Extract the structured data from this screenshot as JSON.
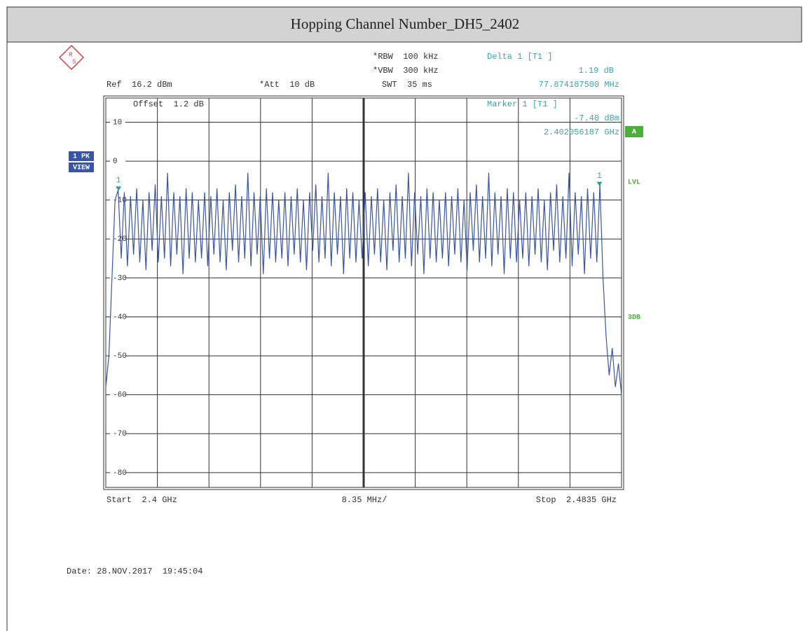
{
  "chart_data": {
    "type": "line",
    "title": "Hopping Channel Number_DH5_2402",
    "annotations": {
      "rbw": "*RBW  100 kHz",
      "vbw": "*VBW  300 kHz",
      "swt": "SWT  35 ms",
      "delta": "Delta 1 [T1 ]",
      "delta_level": "1.19 dB",
      "delta_freq": "77.874187500 MHz",
      "ref": "Ref  16.2 dBm",
      "att": "*Att  10 dB",
      "offset": "Offset  1.2 dB",
      "marker": "Marker 1 [T1 ]",
      "marker_level": "-7.40 dBm",
      "marker_freq": "2.402056187 GHz",
      "trace_box": "A",
      "lvl": "LVL",
      "db3": "3DB",
      "detector": "1 PK",
      "view": "VIEW",
      "start": "Start  2.4 GHz",
      "span": "8.35 MHz/",
      "stop": "Stop  2.4835 GHz",
      "date": "Date: 28.NOV.2017  19:45:04"
    },
    "xlim": [
      2.4,
      2.4835
    ],
    "ylim": [
      -83.8,
      16.2
    ],
    "yticks": [
      10,
      0,
      -10,
      -20,
      -30,
      -40,
      -50,
      -60,
      -70,
      -80
    ],
    "grid": true,
    "markers": [
      {
        "label": "1",
        "x": 2.402056187,
        "y": -7.4
      },
      {
        "label": "1",
        "x": 2.47993,
        "y": -6.21
      }
    ],
    "series": [
      {
        "name": "Trace 1",
        "color": "#3a55a4",
        "x": [
          2.4,
          2.4005,
          2.401,
          2.4015,
          2.402,
          2.4025,
          2.403,
          2.4035,
          2.404,
          2.4045,
          2.405,
          2.4055,
          2.406,
          2.4065,
          2.407,
          2.4075,
          2.408,
          2.4085,
          2.409,
          2.4095,
          2.41,
          2.4105,
          2.411,
          2.4115,
          2.412,
          2.4125,
          2.413,
          2.4135,
          2.414,
          2.4145,
          2.415,
          2.4155,
          2.416,
          2.4165,
          2.417,
          2.4175,
          2.418,
          2.4185,
          2.419,
          2.4195,
          2.42,
          2.4205,
          2.421,
          2.4215,
          2.422,
          2.4225,
          2.423,
          2.4235,
          2.424,
          2.4245,
          2.425,
          2.4255,
          2.426,
          2.4265,
          2.427,
          2.4275,
          2.428,
          2.4285,
          2.429,
          2.4295,
          2.43,
          2.4305,
          2.431,
          2.4315,
          2.432,
          2.4325,
          2.433,
          2.4335,
          2.434,
          2.4345,
          2.435,
          2.4355,
          2.436,
          2.4365,
          2.437,
          2.4375,
          2.438,
          2.4385,
          2.439,
          2.4395,
          2.44,
          2.4405,
          2.441,
          2.4415,
          2.442,
          2.4425,
          2.443,
          2.4435,
          2.444,
          2.4445,
          2.445,
          2.4455,
          2.446,
          2.4465,
          2.447,
          2.4475,
          2.448,
          2.4485,
          2.449,
          2.4495,
          2.45,
          2.4505,
          2.451,
          2.4515,
          2.452,
          2.4525,
          2.453,
          2.4535,
          2.454,
          2.4545,
          2.455,
          2.4555,
          2.456,
          2.4565,
          2.457,
          2.4575,
          2.458,
          2.4585,
          2.459,
          2.4595,
          2.46,
          2.4605,
          2.461,
          2.4615,
          2.462,
          2.4625,
          2.463,
          2.4635,
          2.464,
          2.4645,
          2.465,
          2.4655,
          2.466,
          2.4665,
          2.467,
          2.4675,
          2.468,
          2.4685,
          2.469,
          2.4695,
          2.47,
          2.4705,
          2.471,
          2.4715,
          2.472,
          2.4725,
          2.473,
          2.4735,
          2.474,
          2.4745,
          2.475,
          2.4755,
          2.476,
          2.4765,
          2.477,
          2.4775,
          2.478,
          2.4785,
          2.479,
          2.4795,
          2.48,
          2.4805,
          2.481,
          2.4815,
          2.482,
          2.4825,
          2.483,
          2.4835
        ],
        "values": [
          -58,
          -50,
          -30,
          -10,
          -7.4,
          -25,
          -8,
          -27,
          -9,
          -24,
          -7,
          -26,
          -10,
          -28,
          -8,
          -23,
          -6,
          -26,
          -9,
          -25,
          -3,
          -27,
          -8,
          -24,
          -9,
          -29,
          -7,
          -25,
          -8,
          -26,
          -10,
          -25,
          -8,
          -27,
          -9,
          -24,
          -7,
          -26,
          -10,
          -28,
          -8,
          -23,
          -6,
          -26,
          -9,
          -25,
          -3,
          -27,
          -8,
          -24,
          -9,
          -29,
          -7,
          -25,
          -8,
          -26,
          -10,
          -25,
          -8,
          -27,
          -9,
          -24,
          -7,
          -26,
          -10,
          -28,
          -8,
          -23,
          -6,
          -26,
          -9,
          -25,
          -3,
          -27,
          -8,
          -24,
          -9,
          -29,
          -7,
          -25,
          -8,
          -26,
          -10,
          -25,
          -8,
          -27,
          -9,
          -24,
          -7,
          -26,
          -10,
          -28,
          -8,
          -23,
          -6,
          -26,
          -9,
          -25,
          -3,
          -27,
          -8,
          -24,
          -9,
          -29,
          -7,
          -25,
          -8,
          -26,
          -10,
          -25,
          -8,
          -27,
          -9,
          -24,
          -7,
          -26,
          -10,
          -28,
          -8,
          -23,
          -6,
          -26,
          -9,
          -25,
          -3,
          -27,
          -8,
          -24,
          -9,
          -29,
          -7,
          -25,
          -8,
          -26,
          -10,
          -25,
          -8,
          -27,
          -9,
          -24,
          -7,
          -26,
          -10,
          -28,
          -8,
          -23,
          -6,
          -26,
          -9,
          -25,
          -3,
          -27,
          -8,
          -24,
          -9,
          -29,
          -7,
          -25,
          -8,
          -26,
          -6,
          -30,
          -45,
          -55,
          -48,
          -58,
          -52,
          -60
        ]
      }
    ]
  }
}
